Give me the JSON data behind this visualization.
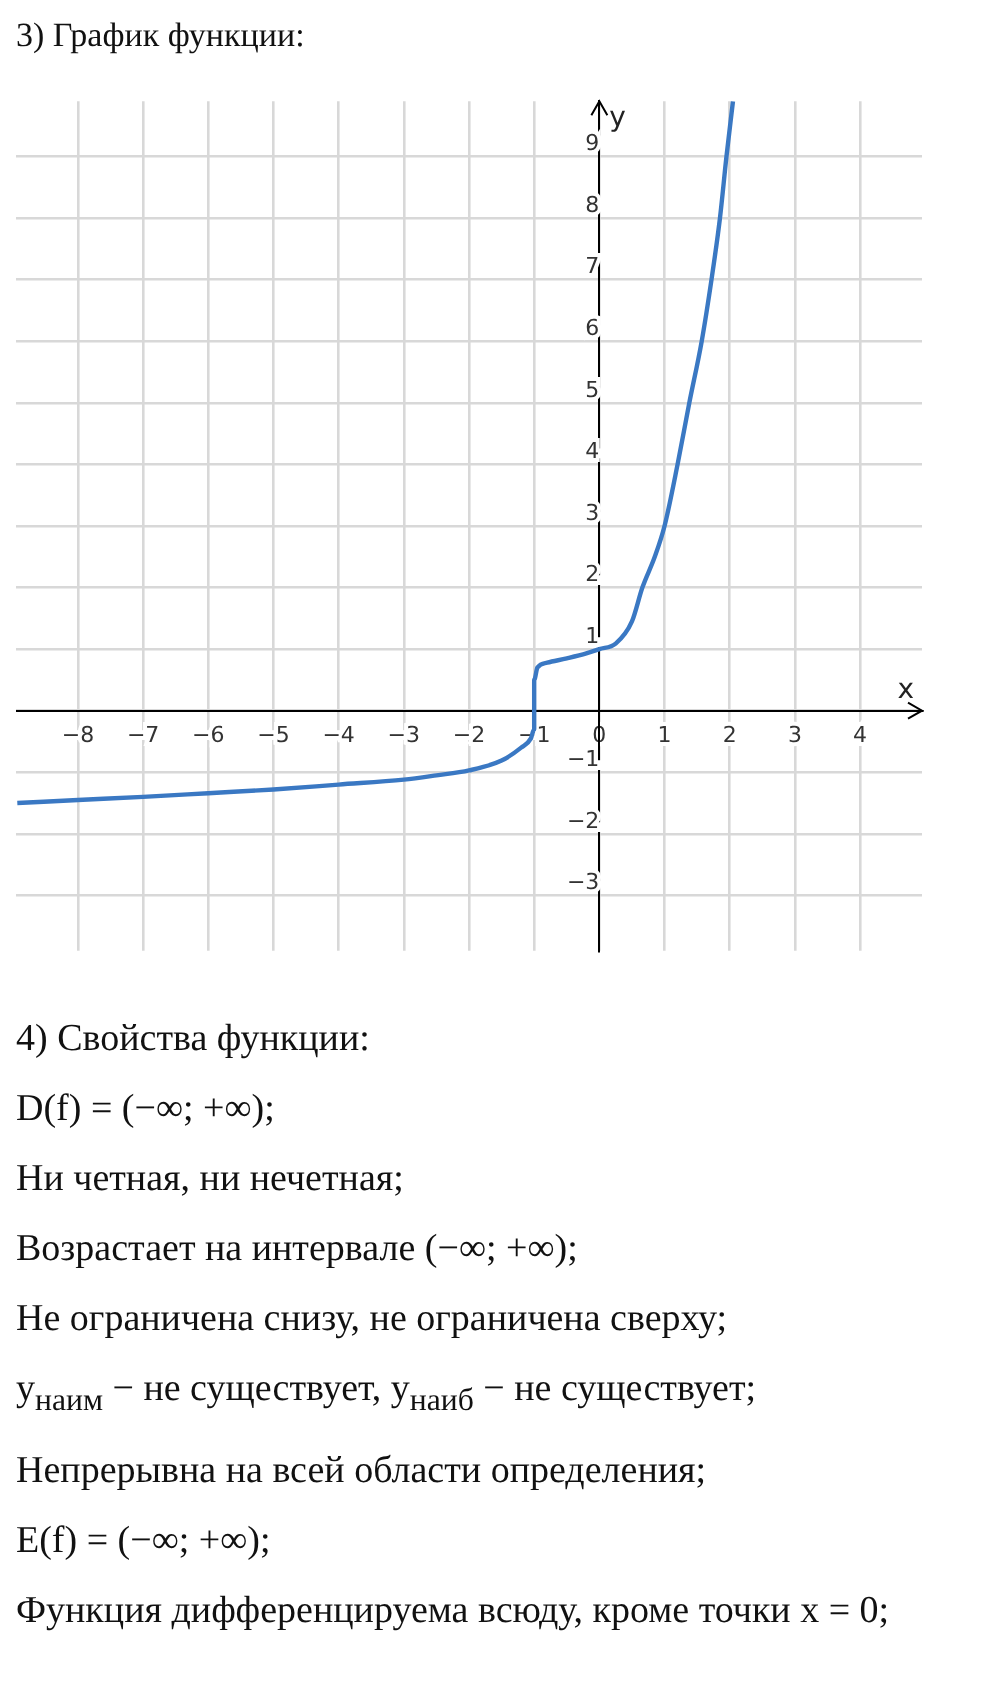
{
  "chart_data": {
    "type": "line",
    "title": "3) График функции:",
    "xlabel": "x",
    "ylabel": "y",
    "x": [
      -8.93,
      -8,
      -7,
      -6,
      -5,
      -4,
      -3,
      -2.5,
      -2,
      -1.5,
      -1.2,
      -1.05,
      -1.0,
      -1.0,
      -0.95,
      -0.8,
      -0.5,
      -0.2,
      0,
      0.25,
      0.5,
      0.66,
      0.85,
      1,
      1.2,
      1.38,
      1.57,
      1.72,
      1.85,
      1.95,
      2.05
    ],
    "series": [
      {
        "color": "#3a78c3",
        "values": [
          -1.5,
          -1.45,
          -1.4,
          -1.34,
          -1.28,
          -1.2,
          -1.12,
          -1.05,
          -0.97,
          -0.81,
          -0.6,
          -0.45,
          -0.3,
          0.5,
          0.7,
          0.78,
          0.85,
          0.93,
          1,
          1.09,
          1.45,
          2,
          2.5,
          3,
          4,
          5,
          6,
          7,
          8,
          9,
          9.9
        ]
      }
    ],
    "xlim": [
      -8.95,
      4.95
    ],
    "ylim": [
      -3.9,
      9.9
    ],
    "xticks": [
      -8,
      -7,
      -6,
      -5,
      -4,
      -3,
      -2,
      -1,
      0,
      1,
      2,
      3,
      4
    ],
    "yticks": [
      -3,
      -2,
      -1,
      {
        "value": 0,
        "label": null
      },
      1,
      2,
      3,
      4,
      5,
      6,
      7,
      8,
      9
    ],
    "grid": true,
    "legend": false,
    "marker": "none",
    "line_style": "solid",
    "annotations": [
      "4) Свойства функции:",
      "D(f) = (−∞; +∞);",
      "Ни четная, ни нечетная;",
      "Возрастает на интервале (−∞; +∞);",
      "Не ограничена снизу, не ограничена сверху;",
      "y$_{наим}$ − не существует,  y$_{наиб}$ − не существует;",
      "Непрерывна на всей области определения;",
      "E(f) = (−∞; +∞);",
      "Функция дифференцируема всюду, кроме точки x = 0;"
    ]
  }
}
